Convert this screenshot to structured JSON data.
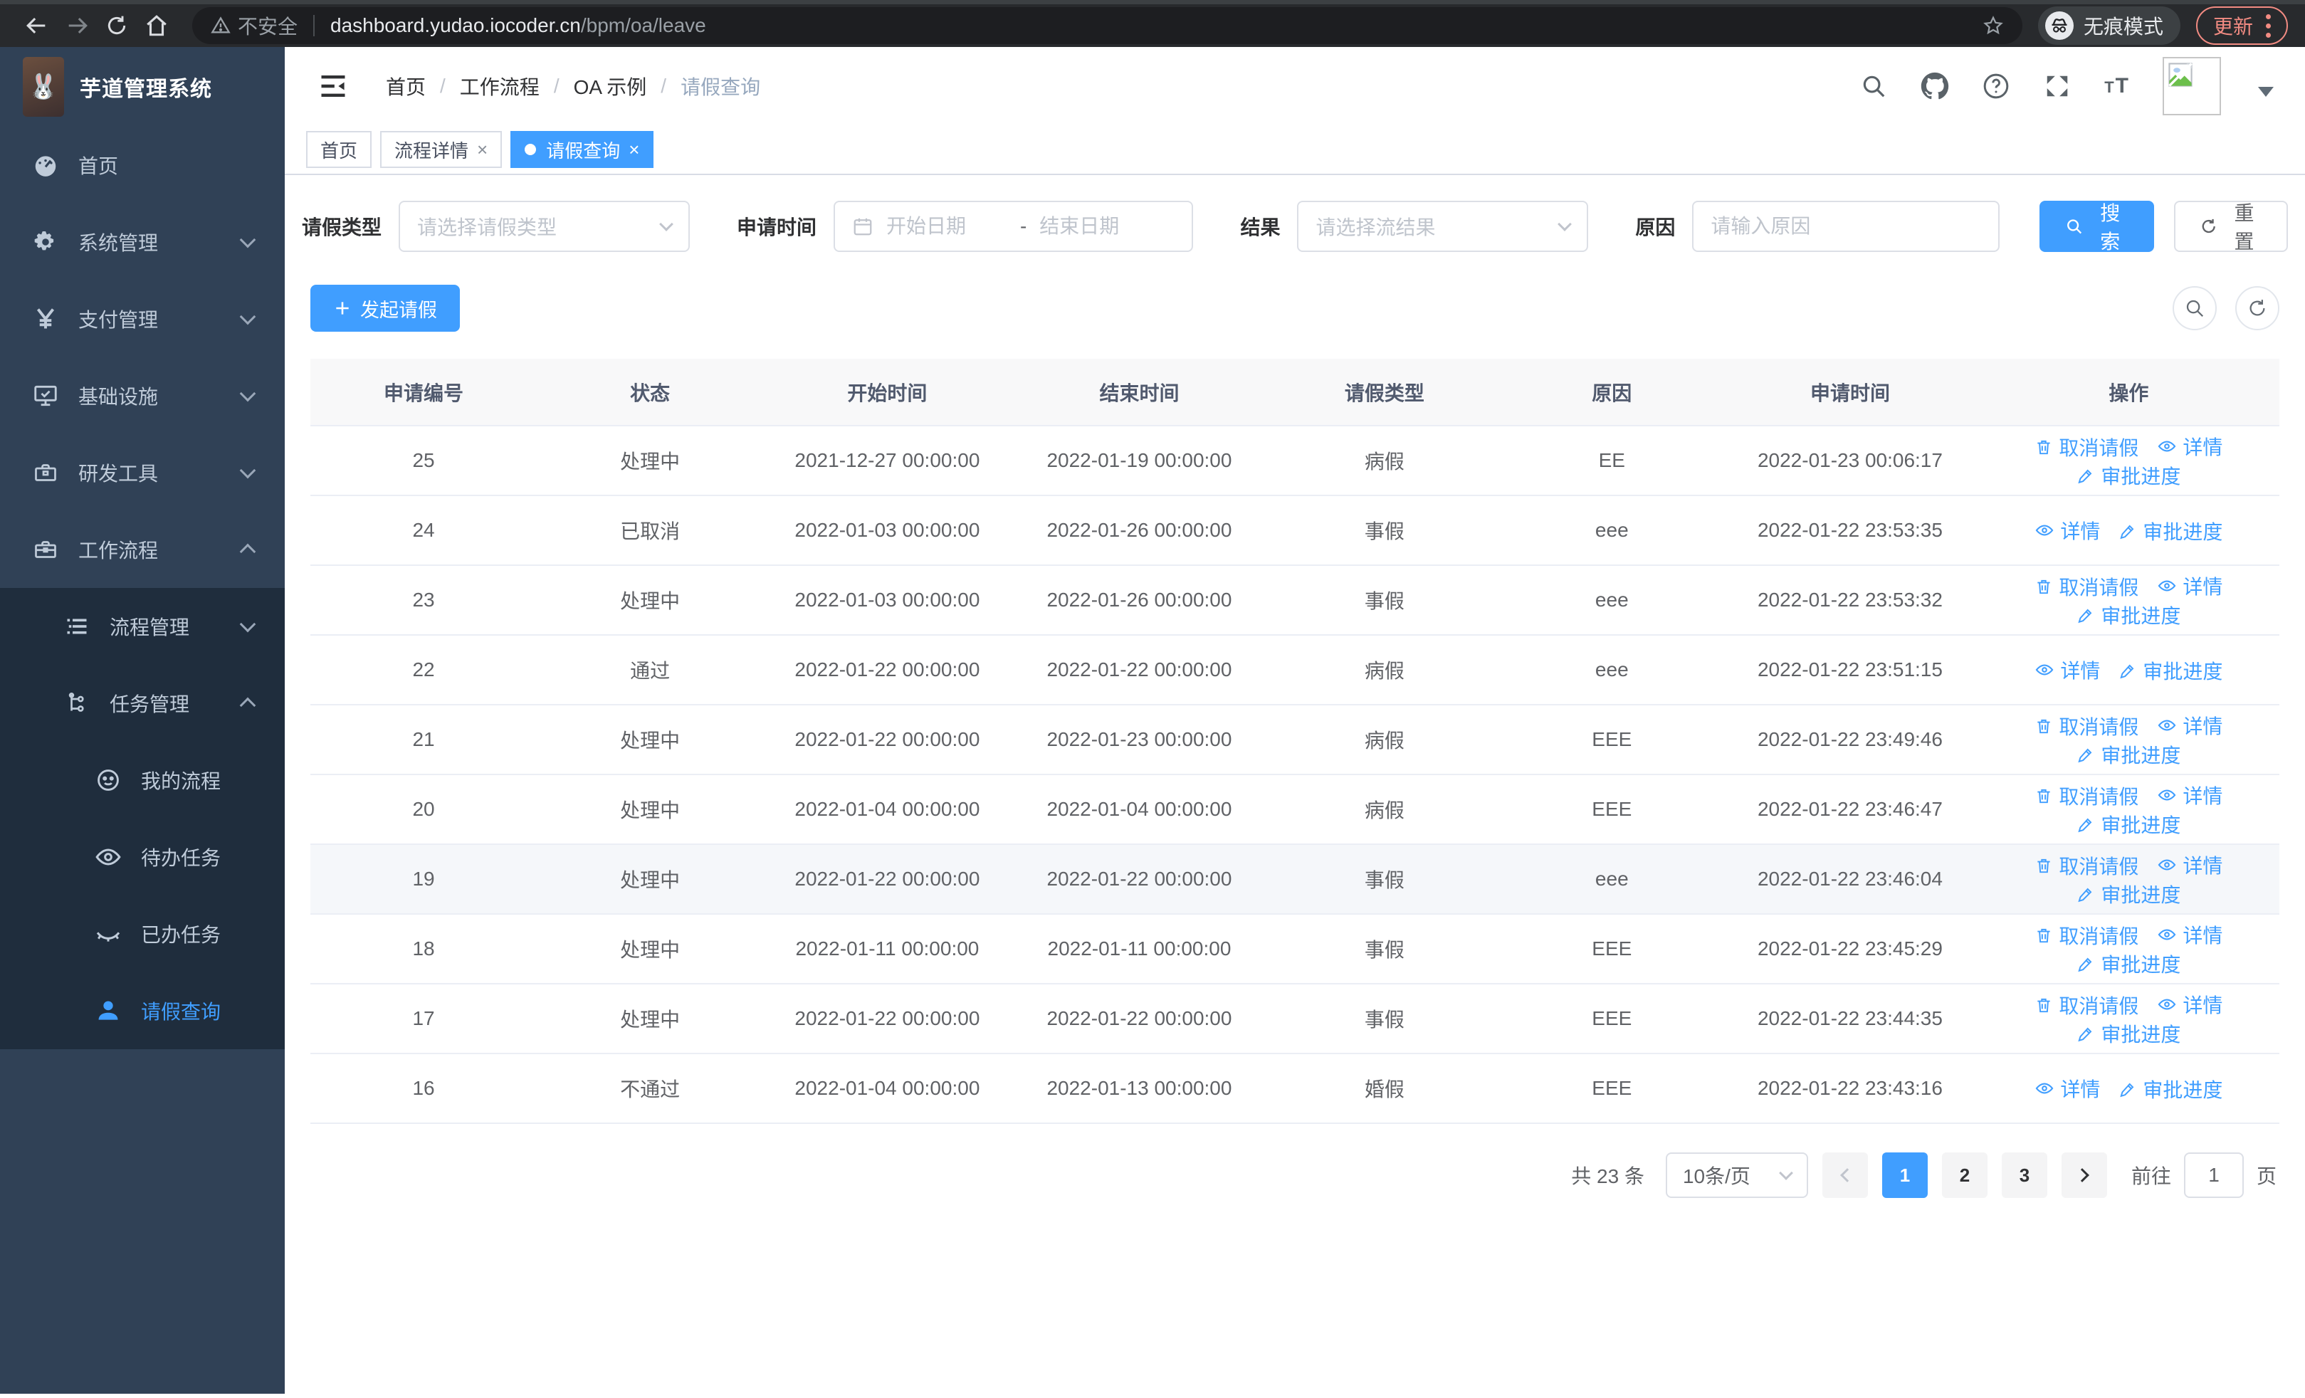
{
  "browser": {
    "nav_icons": [
      "back-arrow-icon",
      "forward-arrow-icon",
      "reload-icon",
      "home-icon"
    ],
    "security_label": "不安全",
    "url_host": "dashboard.yudao.iocoder.cn",
    "url_path": "/bpm/oa/leave",
    "bookmark_icon": "star-icon",
    "incognito_label": "无痕模式",
    "incognito_icon": "incognito-icon",
    "update_label": "更新",
    "update_color": "#f28b82"
  },
  "sidebar": {
    "app_title": "芋道管理系统",
    "logo_icon": "rabbit-avatar",
    "bg_color": "#304156",
    "submenu_bg_color": "#1f2d3d",
    "active_color": "#409eff",
    "items": [
      {
        "name": "home",
        "label": "首页",
        "icon": "dashboard-icon",
        "level": 1,
        "group": false
      },
      {
        "name": "system-management",
        "label": "系统管理",
        "icon": "gear-icon",
        "level": 1,
        "arrow": "down",
        "group": false
      },
      {
        "name": "payment-management",
        "label": "支付管理",
        "icon": "yen-icon",
        "level": 1,
        "arrow": "down",
        "group": false
      },
      {
        "name": "infrastructure",
        "label": "基础设施",
        "icon": "monitor-icon",
        "level": 1,
        "arrow": "down",
        "group": false
      },
      {
        "name": "dev-tools",
        "label": "研发工具",
        "icon": "toolbox-icon",
        "level": 1,
        "arrow": "down",
        "group": false
      },
      {
        "name": "workflow",
        "label": "工作流程",
        "icon": "briefcase-icon",
        "level": 1,
        "arrow": "up",
        "group": false
      },
      {
        "name": "process-management",
        "label": "流程管理",
        "icon": "list-tree-icon",
        "level": 2,
        "arrow": "down",
        "group": true
      },
      {
        "name": "task-management",
        "label": "任务管理",
        "icon": "flow-tree-icon",
        "level": 2,
        "arrow": "up",
        "group": true
      },
      {
        "name": "my-process",
        "label": "我的流程",
        "icon": "face-icon",
        "level": 3,
        "group": true
      },
      {
        "name": "todo-tasks",
        "label": "待办任务",
        "icon": "eye-open-icon",
        "level": 3,
        "group": true
      },
      {
        "name": "done-tasks",
        "label": "已办任务",
        "icon": "eye-closed-icon",
        "level": 3,
        "group": true
      },
      {
        "name": "leave-query",
        "label": "请假查询",
        "icon": "user-icon",
        "level": 3,
        "group": true,
        "active": true
      }
    ]
  },
  "header": {
    "collapse_icon": "hamburger-collapse-icon",
    "breadcrumb": [
      "首页",
      "工作流程",
      "OA 示例",
      "请假查询"
    ],
    "action_icons": [
      "search-icon",
      "github-icon",
      "help-icon",
      "fullscreen-icon",
      "font-size-icon",
      "avatar-broken-image",
      "caret-down-icon"
    ]
  },
  "tabs": [
    {
      "name": "home",
      "label": "首页",
      "closable": false,
      "active": false
    },
    {
      "name": "process-detail",
      "label": "流程详情",
      "closable": true,
      "active": false
    },
    {
      "name": "leave-query",
      "label": "请假查询",
      "closable": true,
      "active": true
    }
  ],
  "filters": {
    "leave_type_label": "请假类型",
    "leave_type_placeholder": "请选择请假类型",
    "apply_time_label": "申请时间",
    "start_date_placeholder": "开始日期",
    "range_separator": "-",
    "end_date_placeholder": "结束日期",
    "result_label": "结果",
    "result_placeholder": "请选择流结果",
    "reason_label": "原因",
    "reason_placeholder": "请输入原因",
    "search_label": "搜索",
    "reset_label": "重置"
  },
  "toolbar": {
    "create_label": "发起请假",
    "table_icons": [
      "search-icon",
      "refresh-icon"
    ]
  },
  "table": {
    "columns": [
      "申请编号",
      "状态",
      "开始时间",
      "结束时间",
      "请假类型",
      "原因",
      "申请时间",
      "操作"
    ],
    "column_widths": [
      "11.5%",
      "11.5%",
      "12.6%",
      "13%",
      "11.9%",
      "11.2%",
      "13%",
      "15.3%"
    ],
    "rows": [
      {
        "id": "25",
        "status": "处理中",
        "start": "2021-12-27 00:00:00",
        "end": "2022-01-19 00:00:00",
        "type": "病假",
        "reason": "EE",
        "apply_time": "2022-01-23 00:06:17",
        "actions": [
          "cancel",
          "detail",
          "progress"
        ],
        "highlight": false
      },
      {
        "id": "24",
        "status": "已取消",
        "start": "2022-01-03 00:00:00",
        "end": "2022-01-26 00:00:00",
        "type": "事假",
        "reason": "eee",
        "apply_time": "2022-01-22 23:53:35",
        "actions": [
          "detail",
          "progress"
        ],
        "highlight": false
      },
      {
        "id": "23",
        "status": "处理中",
        "start": "2022-01-03 00:00:00",
        "end": "2022-01-26 00:00:00",
        "type": "事假",
        "reason": "eee",
        "apply_time": "2022-01-22 23:53:32",
        "actions": [
          "cancel",
          "detail",
          "progress"
        ],
        "highlight": false
      },
      {
        "id": "22",
        "status": "通过",
        "start": "2022-01-22 00:00:00",
        "end": "2022-01-22 00:00:00",
        "type": "病假",
        "reason": "eee",
        "apply_time": "2022-01-22 23:51:15",
        "actions": [
          "detail",
          "progress"
        ],
        "highlight": false
      },
      {
        "id": "21",
        "status": "处理中",
        "start": "2022-01-22 00:00:00",
        "end": "2022-01-23 00:00:00",
        "type": "病假",
        "reason": "EEE",
        "apply_time": "2022-01-22 23:49:46",
        "actions": [
          "cancel",
          "detail",
          "progress"
        ],
        "highlight": false
      },
      {
        "id": "20",
        "status": "处理中",
        "start": "2022-01-04 00:00:00",
        "end": "2022-01-04 00:00:00",
        "type": "病假",
        "reason": "EEE",
        "apply_time": "2022-01-22 23:46:47",
        "actions": [
          "cancel",
          "detail",
          "progress"
        ],
        "highlight": false
      },
      {
        "id": "19",
        "status": "处理中",
        "start": "2022-01-22 00:00:00",
        "end": "2022-01-22 00:00:00",
        "type": "事假",
        "reason": "eee",
        "apply_time": "2022-01-22 23:46:04",
        "actions": [
          "cancel",
          "detail",
          "progress"
        ],
        "highlight": true
      },
      {
        "id": "18",
        "status": "处理中",
        "start": "2022-01-11 00:00:00",
        "end": "2022-01-11 00:00:00",
        "type": "事假",
        "reason": "EEE",
        "apply_time": "2022-01-22 23:45:29",
        "actions": [
          "cancel",
          "detail",
          "progress"
        ],
        "highlight": false
      },
      {
        "id": "17",
        "status": "处理中",
        "start": "2022-01-22 00:00:00",
        "end": "2022-01-22 00:00:00",
        "type": "事假",
        "reason": "EEE",
        "apply_time": "2022-01-22 23:44:35",
        "actions": [
          "cancel",
          "detail",
          "progress"
        ],
        "highlight": false
      },
      {
        "id": "16",
        "status": "不通过",
        "start": "2022-01-04 00:00:00",
        "end": "2022-01-13 00:00:00",
        "type": "婚假",
        "reason": "EEE",
        "apply_time": "2022-01-22 23:43:16",
        "actions": [
          "detail",
          "progress"
        ],
        "highlight": false
      }
    ]
  },
  "actions": {
    "cancel": {
      "label": "取消请假",
      "icon": "trash-icon"
    },
    "detail": {
      "label": "详情",
      "icon": "eye-icon"
    },
    "progress": {
      "label": "审批进度",
      "icon": "edit-icon"
    }
  },
  "pagination": {
    "total_label": "共 23 条",
    "page_size_label": "10条/页",
    "prev_icon": "chevron-left-icon",
    "next_icon": "chevron-right-icon",
    "pages": [
      1,
      2,
      3
    ],
    "active_page": 1,
    "goto_label": "前往",
    "goto_value": "1",
    "page_unit_label": "页"
  },
  "accent_color": "#409eff"
}
